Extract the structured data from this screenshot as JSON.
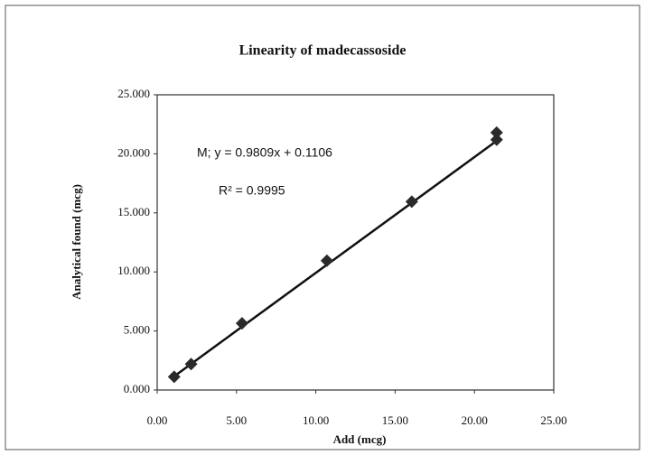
{
  "chart_data": {
    "type": "scatter",
    "title": "Linearity of madecassoside",
    "x_label": "Add (mcg)",
    "y_label": "Analytical found (mcg)",
    "series": [
      {
        "name": "M",
        "color": "#2a2a2a",
        "x": [
          1.07,
          2.14,
          5.35,
          10.7,
          16.05,
          21.4,
          21.4
        ],
        "values": [
          1.12,
          2.2,
          5.65,
          10.95,
          15.95,
          21.2,
          21.8
        ]
      }
    ],
    "trendline": {
      "slope": 0.9809,
      "intercept": 0.1106,
      "label": "M; y = 0.9809x + 0.1106",
      "r2_label": "R² = 0.9995"
    },
    "xlim": [
      0,
      25
    ],
    "xticks": [
      {
        "value": 0,
        "label": "0.00"
      },
      {
        "value": 5,
        "label": "5.00"
      },
      {
        "value": 10,
        "label": "10.00"
      },
      {
        "value": 15,
        "label": "15.00"
      },
      {
        "value": 20,
        "label": "20.00"
      },
      {
        "value": 25,
        "label": "25.00"
      }
    ],
    "ylim": [
      0,
      25
    ],
    "yticks": [
      {
        "value": 0,
        "label": "0.000"
      },
      {
        "value": 5,
        "label": "5.000"
      },
      {
        "value": 10,
        "label": "10.000"
      },
      {
        "value": 15,
        "label": "15.000"
      },
      {
        "value": 20,
        "label": "20.000"
      },
      {
        "value": 25,
        "label": "25.000"
      }
    ]
  }
}
